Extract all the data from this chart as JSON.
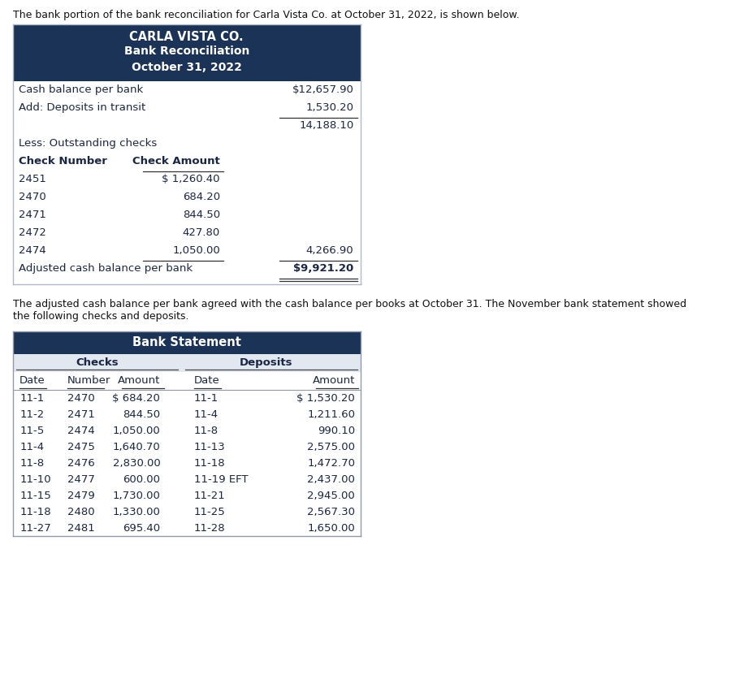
{
  "intro_text": "The bank portion of the bank reconciliation for Carla Vista Co. at October 31, 2022, is shown below.",
  "table1_header_lines": [
    "CARLA VISTA CO.",
    "Bank Reconciliation",
    "October 31, 2022"
  ],
  "table1_header_color": "#1a3357",
  "table1_header_text_color": "#ffffff",
  "table1_rows": [
    {
      "label": "Cash balance per bank",
      "col2": "",
      "col3": "$12,657.90",
      "underline_col2": false,
      "underline_col3": false
    },
    {
      "label": "Add: Deposits in transit",
      "col2": "",
      "col3": "1,530.20",
      "underline_col2": false,
      "underline_col3": true
    },
    {
      "label": "",
      "col2": "",
      "col3": "14,188.10",
      "underline_col2": false,
      "underline_col3": false
    },
    {
      "label": "Less: Outstanding checks",
      "col2": "",
      "col3": "",
      "underline_col2": false,
      "underline_col3": false
    },
    {
      "label": "Check Number",
      "col2": "Check Amount",
      "col3": "",
      "underline_col2": true,
      "underline_col3": false,
      "bold": true
    },
    {
      "label": "2451",
      "col2": "$ 1,260.40",
      "col3": "",
      "underline_col2": false,
      "underline_col3": false
    },
    {
      "label": "2470",
      "col2": "684.20",
      "col3": "",
      "underline_col2": false,
      "underline_col3": false
    },
    {
      "label": "2471",
      "col2": "844.50",
      "col3": "",
      "underline_col2": false,
      "underline_col3": false
    },
    {
      "label": "2472",
      "col2": "427.80",
      "col3": "",
      "underline_col2": false,
      "underline_col3": false
    },
    {
      "label": "2474",
      "col2": "1,050.00",
      "col3": "4,266.90",
      "underline_col2": true,
      "underline_col3": true
    },
    {
      "label": "Adjusted cash balance per bank",
      "col2": "",
      "col3": "$9,921.20",
      "underline_col2": false,
      "underline_col3": false,
      "double_underline": true
    }
  ],
  "middle_text_line1": "The adjusted cash balance per bank agreed with the cash balance per books at October 31. The November bank statement showed",
  "middle_text_line2": "the following checks and deposits.",
  "table2_title": "Bank Statement",
  "table2_title_color": "#1a3357",
  "table2_title_text_color": "#ffffff",
  "table2_sub_bg": "#e2e8f0",
  "table2_checks_header": "Checks",
  "table2_deposits_header": "Deposits",
  "table2_col_headers": [
    "Date",
    "Number",
    "Amount",
    "Date",
    "Amount"
  ],
  "table2_rows": [
    [
      "11-1",
      "2470",
      "$ 684.20",
      "11-1",
      "$ 1,530.20"
    ],
    [
      "11-2",
      "2471",
      "844.50",
      "11-4",
      "1,211.60"
    ],
    [
      "11-5",
      "2474",
      "1,050.00",
      "11-8",
      "990.10"
    ],
    [
      "11-4",
      "2475",
      "1,640.70",
      "11-13",
      "2,575.00"
    ],
    [
      "11-8",
      "2476",
      "2,830.00",
      "11-18",
      "1,472.70"
    ],
    [
      "11-10",
      "2477",
      "600.00",
      "11-19 EFT",
      "2,437.00"
    ],
    [
      "11-15",
      "2479",
      "1,730.00",
      "11-21",
      "2,945.00"
    ],
    [
      "11-18",
      "2480",
      "1,330.00",
      "11-25",
      "2,567.30"
    ],
    [
      "11-27",
      "2481",
      "695.40",
      "11-28",
      "1,650.00"
    ]
  ],
  "bg_color": "#ffffff",
  "text_color": "#1a1a2e",
  "dark_text": "#1a2744"
}
